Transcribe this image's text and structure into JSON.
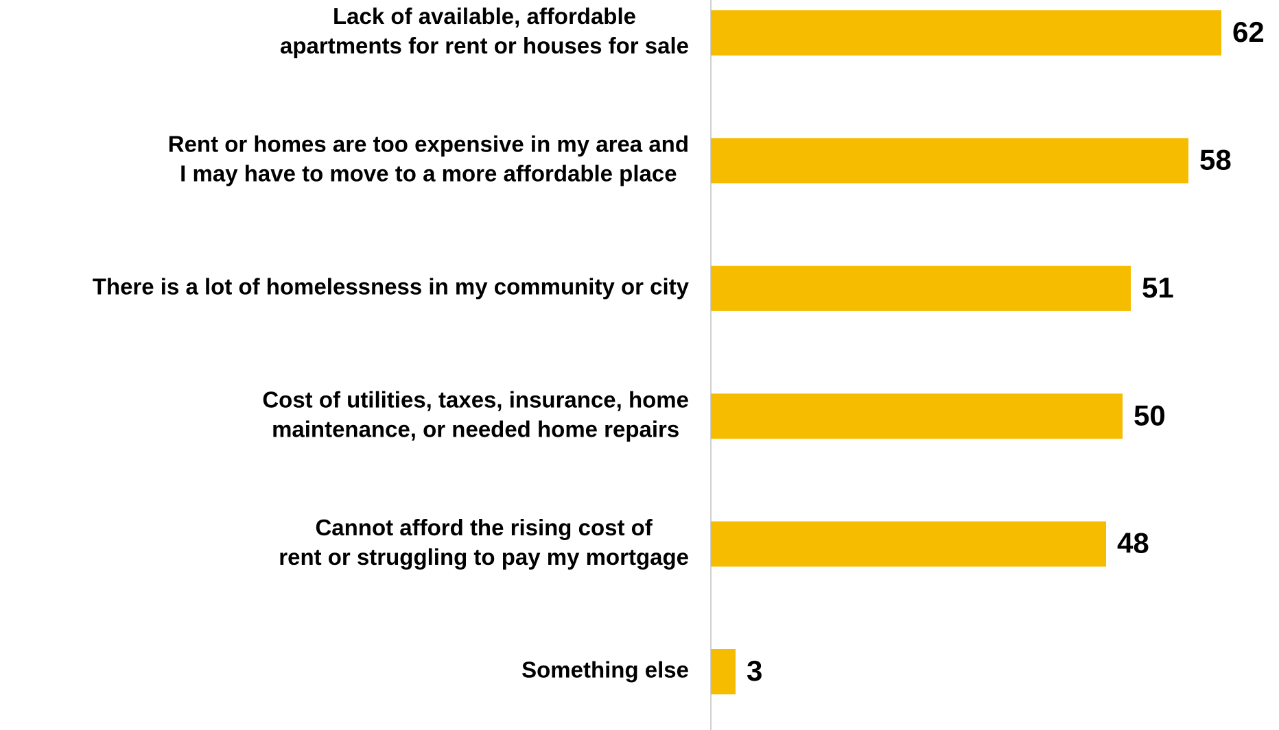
{
  "chart_data": {
    "type": "bar",
    "orientation": "horizontal",
    "categories": [
      [
        "Lack of available, affordable",
        "apartments for rent or houses for sale"
      ],
      [
        "Rent or homes are too expensive in my area and",
        "I may have to move to a more affordable place"
      ],
      [
        "There is a lot of homelessness in my community or city"
      ],
      [
        "Cost of utilities, taxes, insurance, home",
        "maintenance, or needed home repairs"
      ],
      [
        "Cannot afford the rising cost of",
        "rent or struggling to pay my mortgage"
      ],
      [
        "Something else"
      ]
    ],
    "values": [
      62,
      58,
      51,
      50,
      48,
      3
    ],
    "color": "#f5bc00"
  }
}
